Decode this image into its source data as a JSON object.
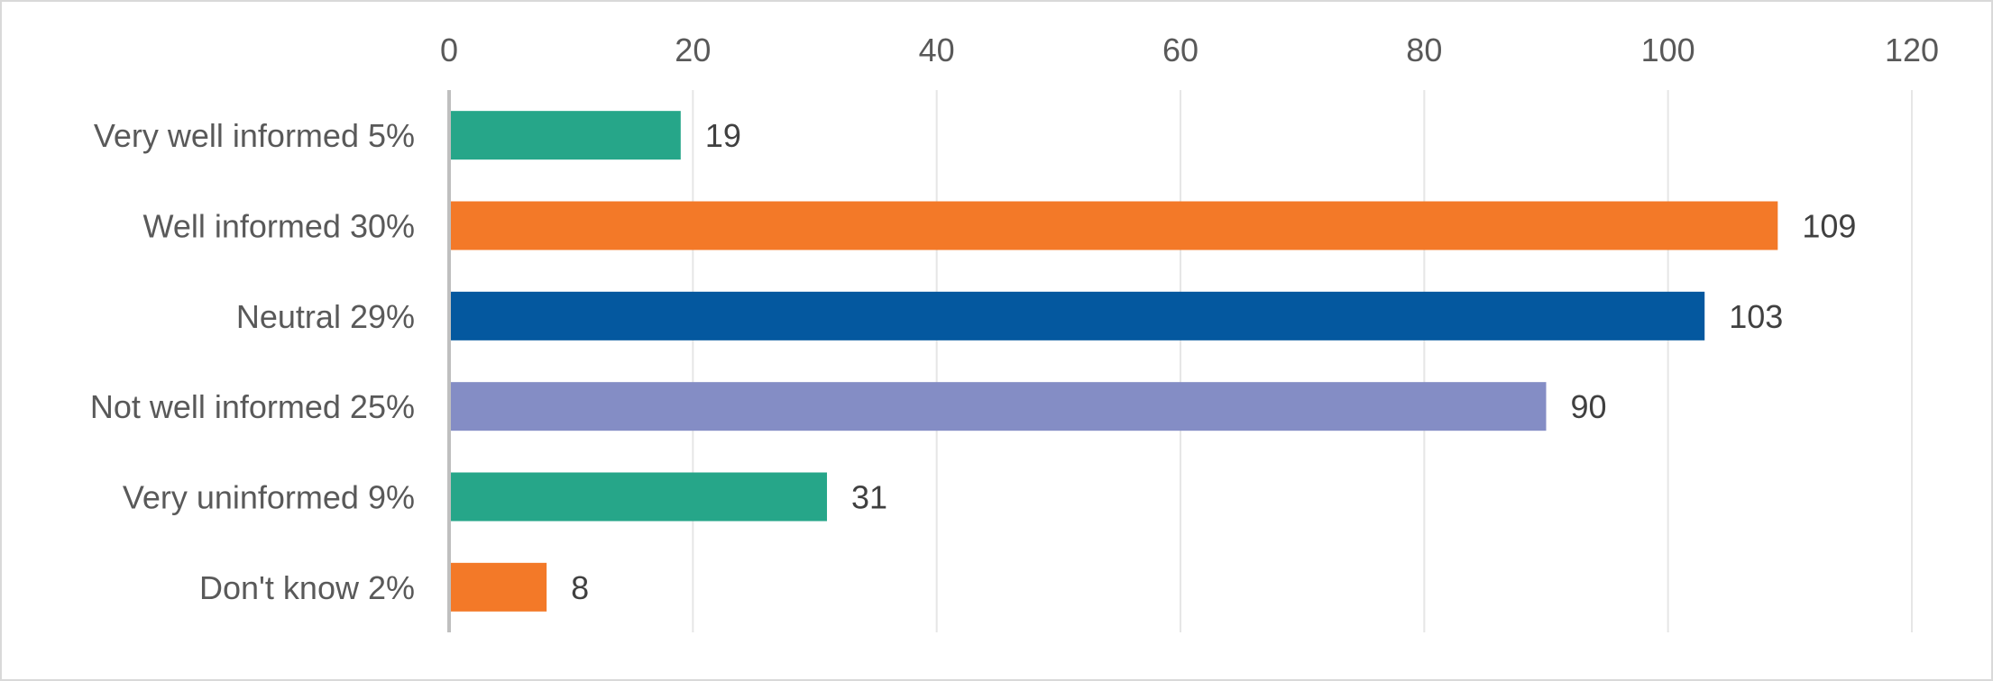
{
  "chart_data": {
    "type": "bar",
    "orientation": "horizontal",
    "title": "",
    "xlabel": "",
    "ylabel": "",
    "categories": [
      "Very well informed 5%",
      "Well informed 30%",
      "Neutral 29%",
      "Not well informed 25%",
      "Very uninformed 9%",
      "Don't know 2%"
    ],
    "values": [
      19,
      109,
      103,
      90,
      31,
      8
    ],
    "colors": [
      "#26a689",
      "#f37928",
      "#04589f",
      "#848dc5",
      "#26a689",
      "#f37928"
    ],
    "xlim": [
      0,
      120
    ],
    "xticks": [
      "0",
      "20",
      "40",
      "60",
      "80",
      "100",
      "120"
    ],
    "axis_position": "top",
    "gridlines": true,
    "data_labels": true,
    "legend": "none"
  }
}
